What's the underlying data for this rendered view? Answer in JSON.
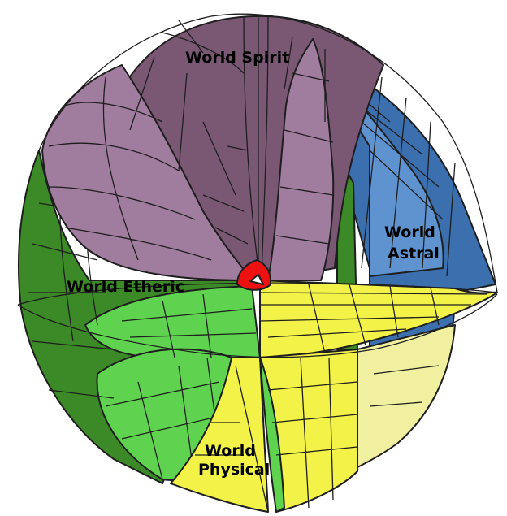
{
  "diagram": {
    "labels": {
      "spirit": "World Spirit",
      "astral_1": "World",
      "astral_2": "Astral",
      "etheric": "World Etheric",
      "physical_1": "World",
      "physical_2": "Physical"
    },
    "colors": {
      "spirit_dark": "#7a5874",
      "spirit_light": "#a07c9e",
      "astral_light": "#5f93d0",
      "astral_dark": "#3c6fae",
      "etheric_dark": "#3c8a27",
      "etheric_light": "#5fd34f",
      "physical_yellow": "#f2f249",
      "physical_pale": "#f0f0a0",
      "center": "#ee1111"
    }
  }
}
